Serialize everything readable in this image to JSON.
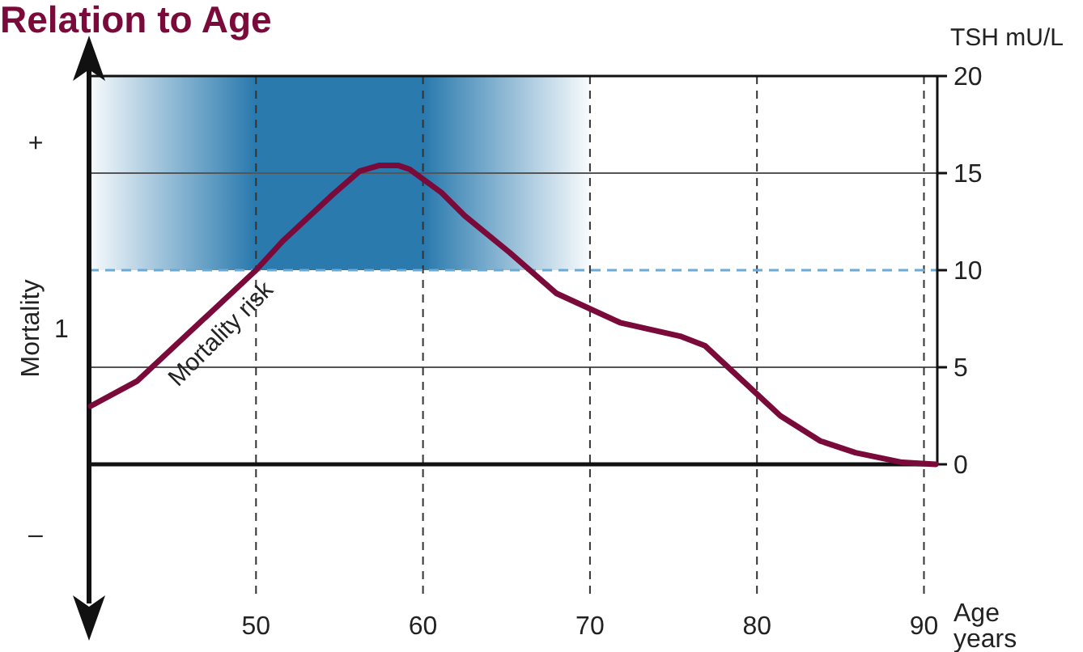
{
  "chart_data": {
    "type": "line",
    "title": "Relation to Age",
    "xlabel": "Age years",
    "ylabel": "TSH mU/L",
    "y2label": "Mortality",
    "x": [
      40.1,
      42.9,
      50.0,
      51.6,
      54.6,
      56.2,
      57.4,
      58.5,
      59.2,
      61.1,
      62.5,
      65.2,
      68.0,
      71.8,
      75.4,
      76.9,
      81.4,
      83.8,
      85.9,
      88.7,
      90.7
    ],
    "series": [
      {
        "color": "#7a0a3a",
        "values": [
          3.0,
          4.3,
          10.0,
          11.5,
          13.9,
          15.1,
          15.4,
          15.4,
          15.2,
          14.0,
          12.8,
          10.9,
          8.8,
          7.3,
          6.6,
          6.1,
          2.5,
          1.2,
          0.6,
          0.1,
          0
        ]
      }
    ],
    "xlim": [
      40,
      90.8
    ],
    "xticks": [
      50,
      60,
      70,
      80,
      90
    ],
    "ylim": [
      -7,
      20
    ],
    "yticks": [
      0,
      5,
      10,
      15,
      20
    ],
    "grid": true,
    "marker": "none",
    "line_style": "solid",
    "ref_lines": [
      {
        "axis": "y",
        "value": 10,
        "color": "#6aaad4",
        "line_style": "dashed"
      }
    ],
    "bands": [
      {
        "axis": "x",
        "from": 40,
        "to": 70,
        "color": "#1f73aa"
      }
    ],
    "annotations": [
      "+",
      "1",
      "–",
      "Mortality risk"
    ]
  }
}
